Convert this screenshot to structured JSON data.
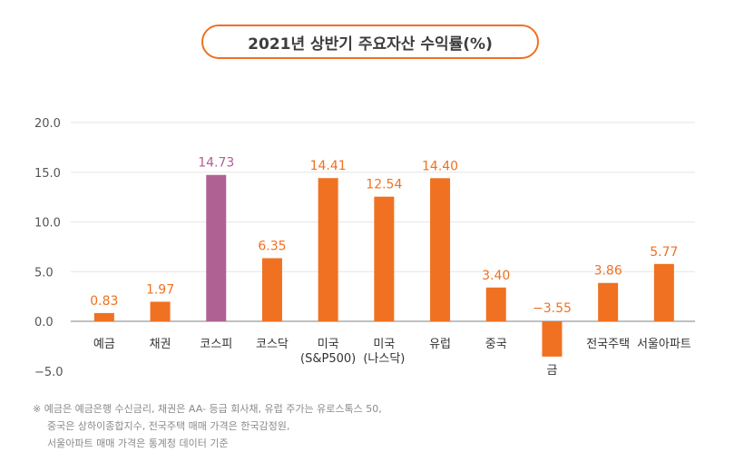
{
  "chart_data": {
    "type": "bar",
    "title": "2021년 상반기 주요자산 수익률(%)",
    "categories": [
      "예금",
      "채권",
      "코스피",
      "코스닥",
      "미국\n(S&P500)",
      "미국\n(나스닥)",
      "유럽",
      "중국",
      "금",
      "전국주택",
      "서울아파트"
    ],
    "values": [
      0.83,
      1.97,
      14.73,
      6.35,
      14.41,
      12.54,
      14.4,
      3.4,
      -3.55,
      3.86,
      5.77
    ],
    "value_labels": [
      "0.83",
      "1.97",
      "14.73",
      "6.35",
      "14.41",
      "12.54",
      "14.40",
      "3.40",
      "−3.55",
      "3.86",
      "5.77"
    ],
    "highlight_index": 2,
    "y_ticks": [
      "20.0",
      "15.0",
      "10.0",
      "5.0",
      "0.0",
      "−5.0"
    ],
    "y_tick_values": [
      20,
      15,
      10,
      5,
      0,
      -5
    ],
    "ylim": [
      -5,
      20
    ],
    "xlabel": "",
    "ylabel": "",
    "grid": true,
    "colors": {
      "bar": "#f07121",
      "highlight": "#b06193",
      "grid": "#e6e6e6",
      "axis": "#9a9a9a",
      "tick_text": "#555555",
      "category_text": "#333333"
    }
  },
  "footnote": {
    "line1": "※ 예금은 예금은행 수신금리, 채권은 AA- 등급 회사채, 유럽 주가는 유로스톡스 50,",
    "line2": "중국은 상하이종합지수, 전국주택 매매 가격은 한국감정원,",
    "line3": "서울아파트 매매 가격은 통계청 데이터 기준"
  }
}
